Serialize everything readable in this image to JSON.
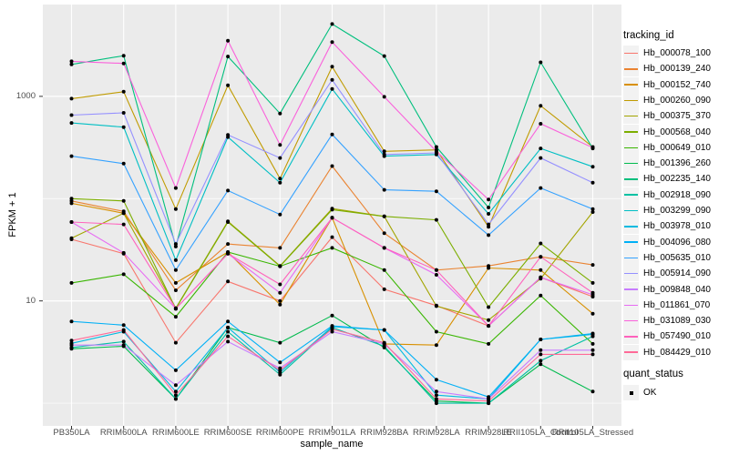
{
  "chart_data": {
    "type": "line",
    "title": "",
    "xlabel": "sample_name",
    "ylabel": "FPKM + 1",
    "y_scale": "log10",
    "ylim": [
      0.6,
      7900
    ],
    "grid": true,
    "legend_position": "right",
    "y_major_ticks": [
      {
        "label": "1000",
        "value": 1000
      },
      {
        "label": "10",
        "value": 10
      }
    ],
    "y_minor_gridlines": [
      1,
      100
    ],
    "categories": [
      "PB350LA",
      "RRIM600LA",
      "RRIM600LE",
      "RRIM600SE",
      "RRIM600PE",
      "RRIM901LA",
      "RRIM928BA",
      "RRIM928LA",
      "RRIM928LE",
      "RRII105LA_Control",
      "RRII105LA_Stressed"
    ],
    "series": [
      {
        "name": "Hb_000078_100",
        "color": "#F8766D",
        "values": [
          40,
          29,
          3.9,
          15.5,
          10,
          42,
          13,
          9,
          5.7,
          17,
          11
        ]
      },
      {
        "name": "Hb_000139_240",
        "color": "#EA8331",
        "values": [
          95,
          75,
          12.7,
          36,
          33,
          208,
          46,
          20,
          22,
          27,
          22.5
        ]
      },
      {
        "name": "Hb_000152_740",
        "color": "#D89000",
        "values": [
          90,
          72,
          15,
          30,
          9.2,
          65,
          3.8,
          3.7,
          21,
          20,
          7.5
        ]
      },
      {
        "name": "Hb_000260_090",
        "color": "#C09B00",
        "values": [
          950,
          1110,
          79,
          1280,
          157,
          1950,
          290,
          300,
          53,
          810,
          320
        ]
      },
      {
        "name": "Hb_000375_370",
        "color": "#A3A500",
        "values": [
          41,
          72,
          8.5,
          60,
          22,
          80,
          67,
          8.9,
          6.5,
          16.5,
          74
        ]
      },
      {
        "name": "Hb_000568_040",
        "color": "#7CAE00",
        "values": [
          100,
          95,
          8.4,
          59,
          21.8,
          78,
          67,
          62,
          8.7,
          36.5,
          15
        ]
      },
      {
        "name": "Hb_000649_010",
        "color": "#39B600",
        "values": [
          15,
          18.2,
          7,
          30,
          21.8,
          33,
          20,
          5,
          3.8,
          11.3,
          3.8
        ]
      },
      {
        "name": "Hb_001396_260",
        "color": "#00BB4E",
        "values": [
          3.4,
          3.6,
          1.1,
          5.5,
          3.9,
          7.2,
          3.5,
          1.05,
          1.0,
          2.4,
          1.3
        ]
      },
      {
        "name": "Hb_002235_140",
        "color": "#00BF7D",
        "values": [
          2050,
          2500,
          34,
          2450,
          680,
          5100,
          2480,
          320,
          82,
          2150,
          310
        ]
      },
      {
        "name": "Hb_002918_090",
        "color": "#00C1A3",
        "values": [
          3.5,
          4.0,
          1.1,
          5.0,
          1.9,
          5.5,
          3.6,
          1.0,
          1.0,
          2.6,
          4.5
        ]
      },
      {
        "name": "Hb_003299_090",
        "color": "#00BFC4",
        "values": [
          550,
          500,
          25,
          400,
          143,
          1180,
          260,
          270,
          71,
          310,
          205
        ]
      },
      {
        "name": "Hb_003978_010",
        "color": "#00BAE0",
        "values": [
          3.85,
          5.0,
          1.3,
          5.5,
          2.0,
          5.6,
          5.2,
          1.2,
          1.1,
          4.2,
          4.7
        ]
      },
      {
        "name": "Hb_004096_080",
        "color": "#00B0F6",
        "values": [
          6.3,
          5.8,
          2.1,
          6.3,
          2.5,
          5.7,
          5.2,
          1.7,
          1.15,
          4.2,
          4.8
        ]
      },
      {
        "name": "Hb_005635_010",
        "color": "#35A2FF",
        "values": [
          260,
          220,
          20,
          120,
          70,
          425,
          122,
          118,
          44,
          127,
          79
        ]
      },
      {
        "name": "Hb_005914_090",
        "color": "#9590FF",
        "values": [
          655,
          690,
          36,
          420,
          250,
          1450,
          270,
          280,
          56,
          250,
          143
        ]
      },
      {
        "name": "Hb_009848_040",
        "color": "#C77CFF",
        "values": [
          3.7,
          3.7,
          1.5,
          4.0,
          2.2,
          5.0,
          3.8,
          1.3,
          1.1,
          3.3,
          3.3
        ]
      },
      {
        "name": "Hb_011861_070",
        "color": "#E76BF3",
        "values": [
          59,
          29.5,
          8.4,
          29,
          12,
          65,
          33,
          18,
          5.7,
          17,
          11.5
        ]
      },
      {
        "name": "Hb_031089_030",
        "color": "#FA62DB",
        "values": [
          2200,
          2100,
          127,
          3500,
          335,
          3400,
          990,
          290,
          98,
          540,
          315
        ]
      },
      {
        "name": "Hb_057490_010",
        "color": "#FF62BC",
        "values": [
          59,
          56,
          8.4,
          29,
          14.5,
          65,
          33,
          20,
          5.7,
          27,
          12
        ]
      },
      {
        "name": "Hb_084429_010",
        "color": "#FF6A98",
        "values": [
          4.1,
          5.2,
          1.2,
          4.5,
          2.1,
          5.3,
          3.9,
          1.1,
          1.05,
          3.0,
          3.0
        ]
      }
    ]
  },
  "legend": {
    "tracking_title": "tracking_id",
    "quant_title": "quant_status",
    "quant_items": [
      {
        "label": "OK"
      }
    ]
  },
  "colors": {
    "panel_bg": "#EBEBEB",
    "grid": "#FFFFFF",
    "axis_text": "#4D4D4D",
    "tick_mark": "#333333",
    "point": "#000000",
    "legend_key_bg": "#F2F2F2"
  }
}
